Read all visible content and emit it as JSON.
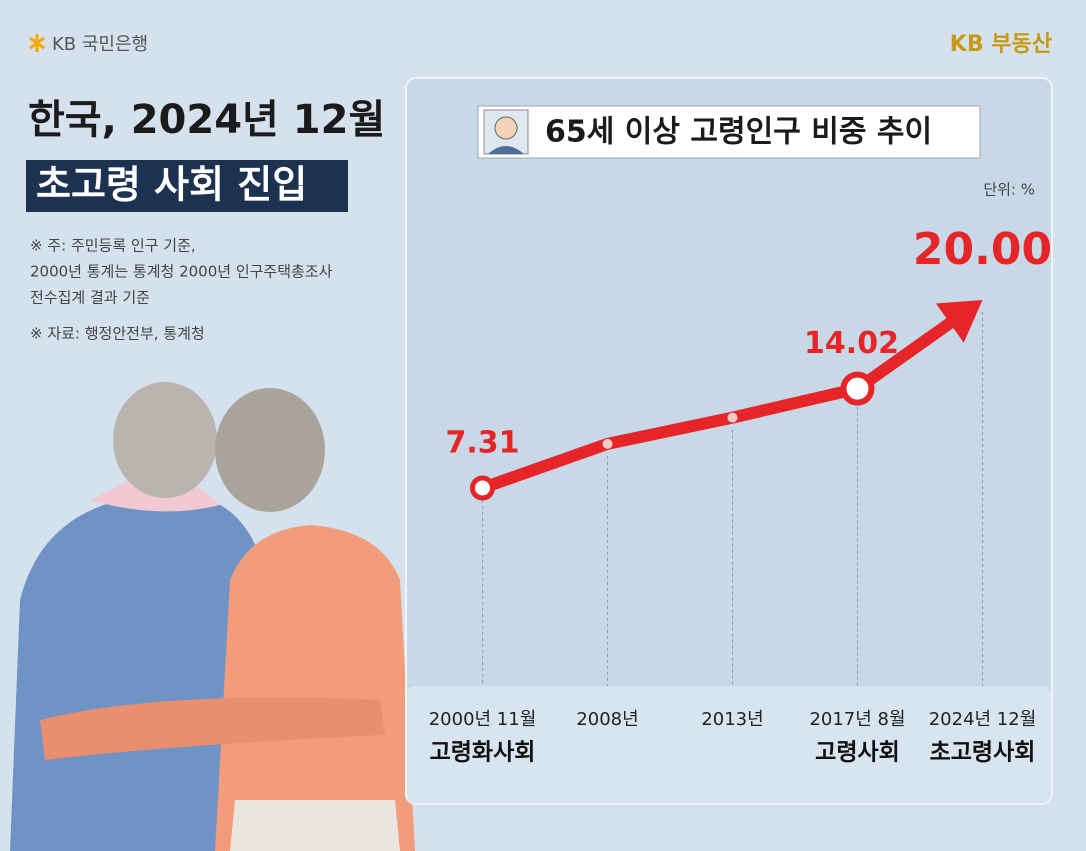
{
  "header": {
    "bank": "KB 국민은행",
    "brand": "KB 부동산"
  },
  "headline": {
    "line1": "한국, 2024년 12월",
    "line2": "초고령 사회 진입"
  },
  "notes": [
    "※ 주: 주민등록 인구 기준,",
    "2000년 통계는 통계청 2000년 인구주택총조사",
    "전수집계 결과 기준",
    "※ 자료: 행정안전부, 통계청"
  ],
  "chart_data": {
    "type": "line",
    "title": "65세 이상 고령인구 비중 추이",
    "unit": "단위: %",
    "categories": [
      "2000년 11월",
      "2008년",
      "2013년",
      "2017년 8월",
      "2024년 12월"
    ],
    "sublabels": [
      "고령화사회",
      null,
      null,
      "고령사회",
      "초고령사회"
    ],
    "values": [
      7.31,
      10.29,
      12.06,
      14.02,
      20.0
    ],
    "value_labels": [
      "7.31",
      null,
      null,
      "14.02",
      "20.00"
    ],
    "color": "#e52528"
  }
}
